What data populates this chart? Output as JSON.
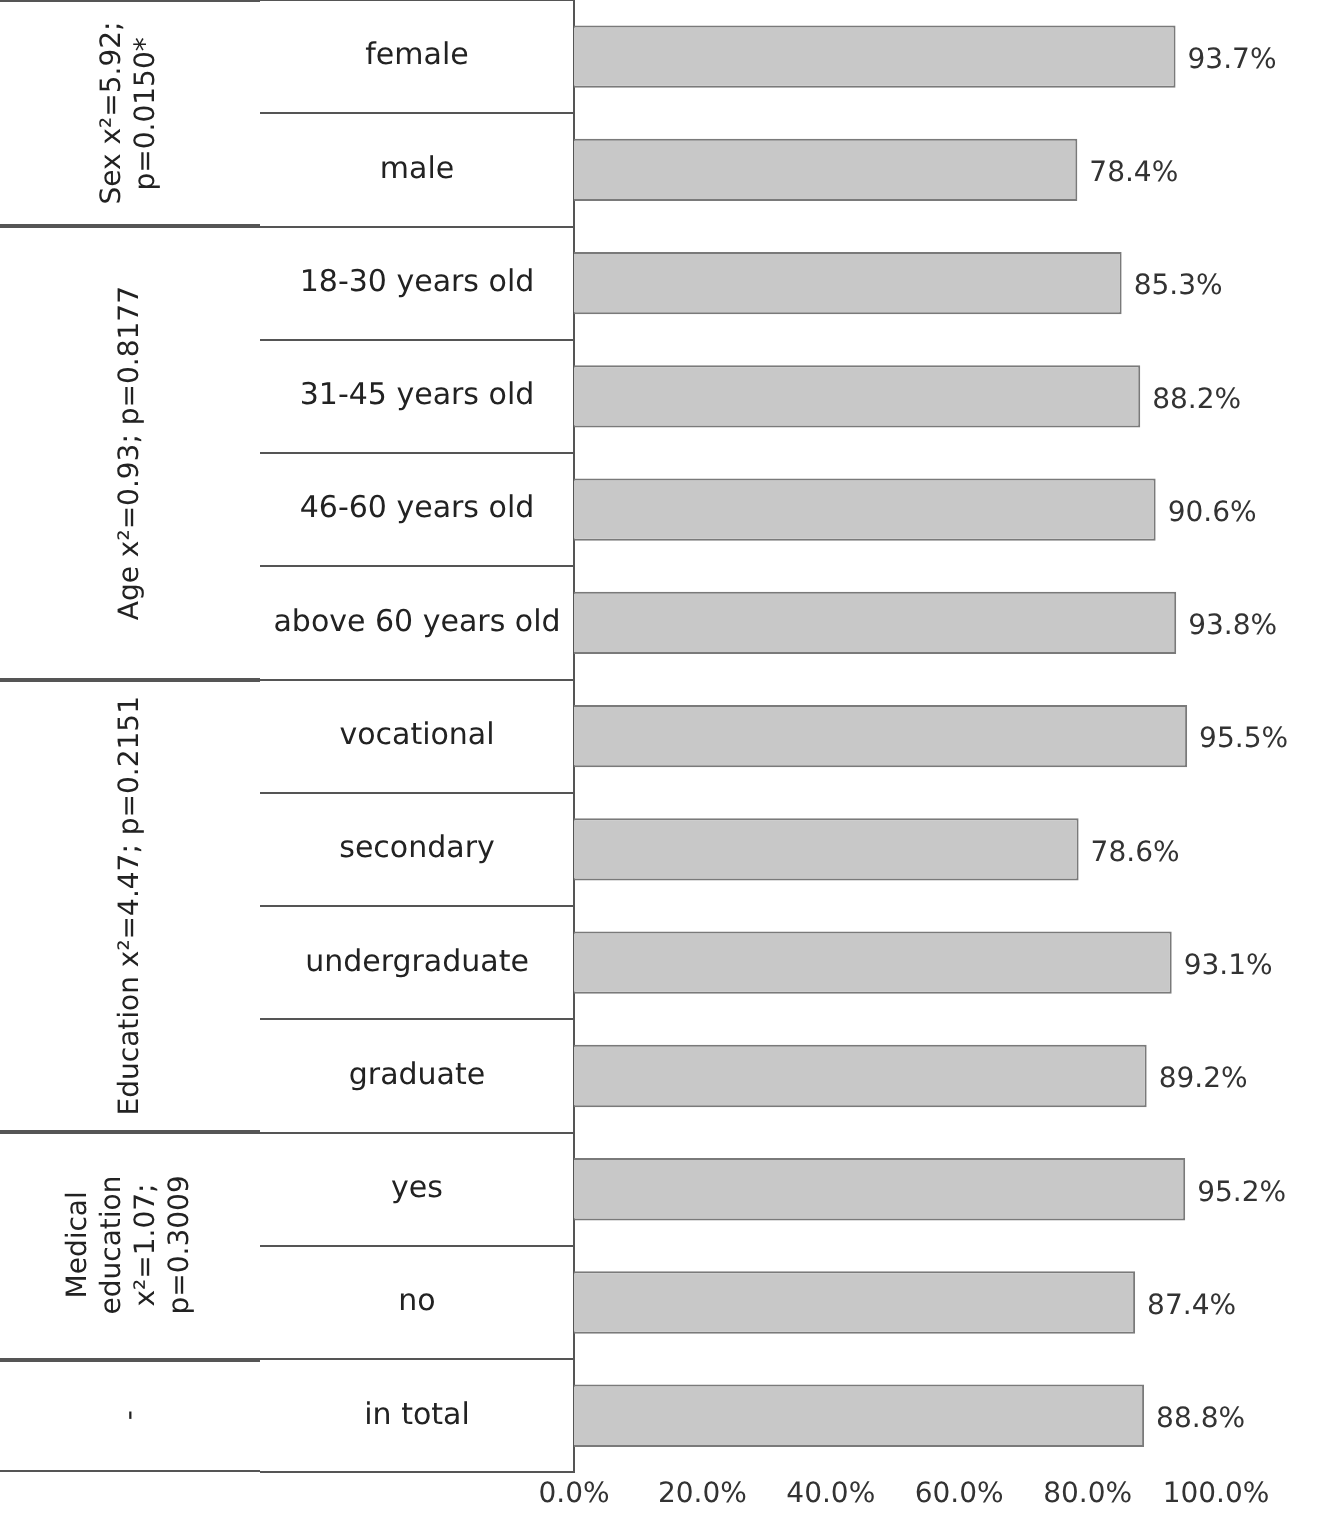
{
  "chart_data": {
    "type": "bar",
    "orientation": "horizontal",
    "categories": [
      "female",
      "male",
      "18-30 years old",
      "31-45 years old",
      "46-60 years old",
      "above 60 years old",
      "vocational",
      "secondary",
      "undergraduate",
      "graduate",
      "yes",
      "no",
      "in total"
    ],
    "values": [
      93.7,
      78.4,
      85.3,
      88.2,
      90.6,
      93.8,
      95.5,
      78.6,
      93.1,
      89.2,
      95.2,
      87.4,
      88.8
    ],
    "value_labels": [
      "93.7%",
      "78.4%",
      "85.3%",
      "88.2%",
      "90.6%",
      "93.8%",
      "95.5%",
      "78.6%",
      "93.1%",
      "89.2%",
      "95.2%",
      "87.4%",
      "88.8%"
    ],
    "color": "#c8c8c8",
    "xlim": [
      0,
      100
    ],
    "xticks": [
      {
        "value": 0,
        "label": "0.0%"
      },
      {
        "value": 20,
        "label": "20.0%"
      },
      {
        "value": 40,
        "label": "40.0%"
      },
      {
        "value": 60,
        "label": "60.0%"
      },
      {
        "value": 80,
        "label": "80.0%"
      },
      {
        "value": 100,
        "label": "100.0%"
      }
    ],
    "grid": false,
    "legend": false,
    "annotations": [
      "Sex x²=5.92; p=0.0150*",
      "Age x²=0.93; p=0.8177",
      "Education x²=4.47; p=0.2151",
      "Medical education x²=1.07; p=0.3009",
      "-"
    ]
  }
}
